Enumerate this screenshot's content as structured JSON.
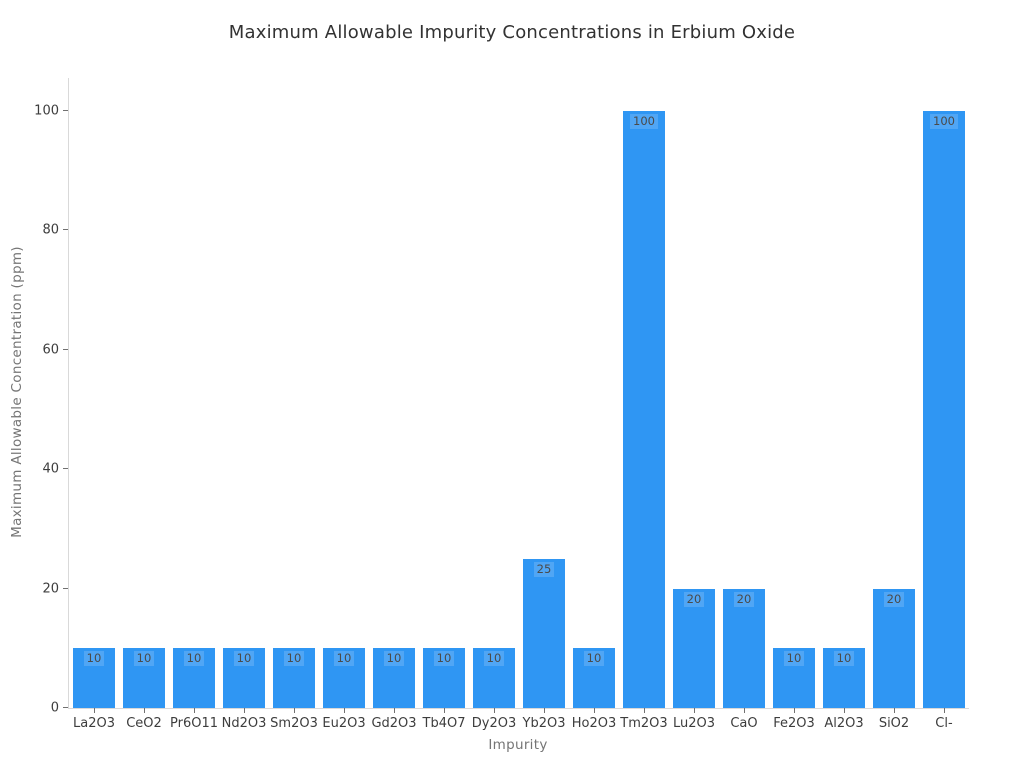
{
  "chart_data": {
    "type": "bar",
    "title": "Maximum Allowable Impurity Concentrations in Erbium Oxide",
    "xlabel": "Impurity",
    "ylabel": "Maximum Allowable Concentration (ppm)",
    "categories": [
      "La2O3",
      "CeO2",
      "Pr6O11",
      "Nd2O3",
      "Sm2O3",
      "Eu2O3",
      "Gd2O3",
      "Tb4O7",
      "Dy2O3",
      "Yb2O3",
      "Ho2O3",
      "Tm2O3",
      "Lu2O3",
      "CaO",
      "Fe2O3",
      "Al2O3",
      "SiO2",
      "Cl-"
    ],
    "values": [
      10,
      10,
      10,
      10,
      10,
      10,
      10,
      10,
      10,
      25,
      10,
      100,
      20,
      20,
      10,
      10,
      20,
      100
    ],
    "bar_value_labels": [
      "10",
      "10",
      "10",
      "10",
      "10",
      "10",
      "10",
      "10",
      "10",
      "25",
      "10",
      "100",
      "20",
      "20",
      "10",
      "10",
      "20",
      "100"
    ],
    "ylim": [
      0,
      100
    ],
    "yticks": [
      0,
      20,
      40,
      60,
      80,
      100
    ],
    "grid": false,
    "legend": "none",
    "colors": {
      "bar_fill": "#2f96f3",
      "bar_value_label": "#4a4a4a",
      "axis_spine": "#d9d9d9",
      "tick_mark": "#707070",
      "tick_label": "#3d3d3d",
      "axis_title": "#757575",
      "chart_title": "#323232",
      "background": "#ffffff"
    }
  }
}
